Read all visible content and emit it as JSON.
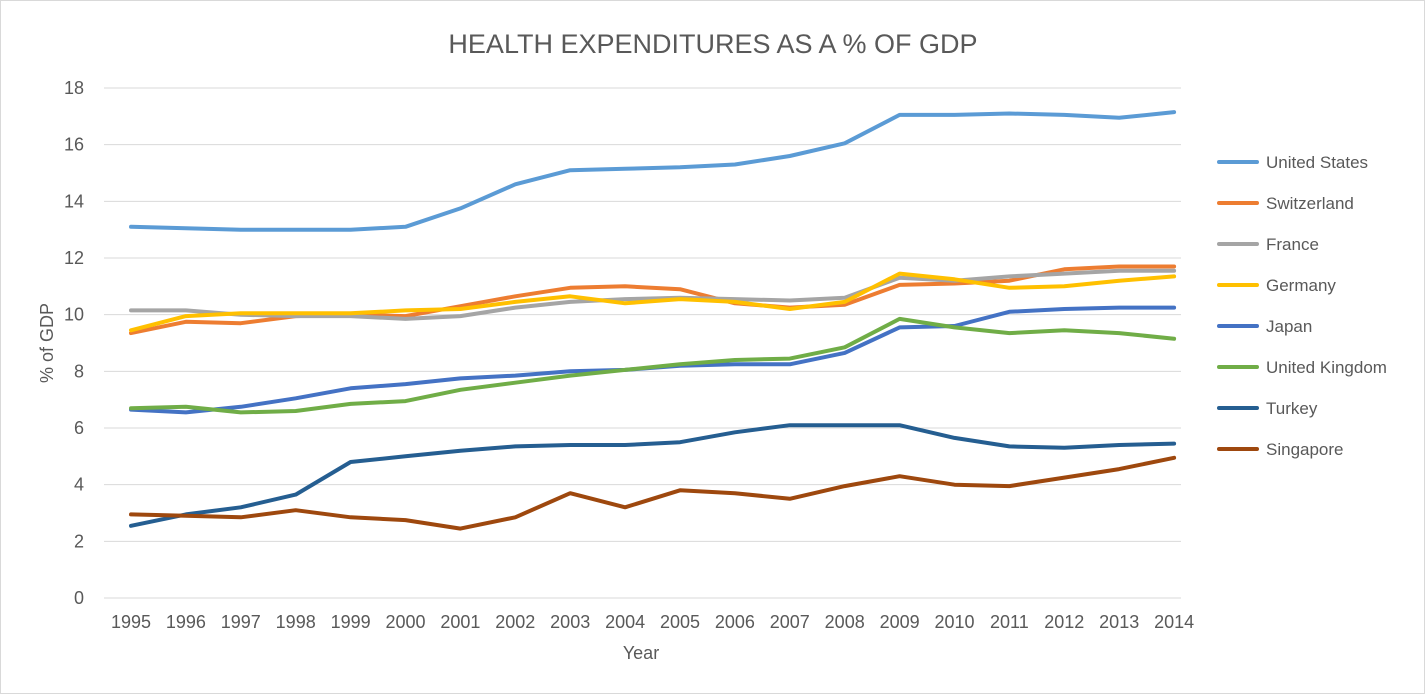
{
  "chart_data": {
    "type": "line",
    "title": "HEALTH EXPENDITURES AS A % OF GDP",
    "xlabel": "Year",
    "ylabel": "% of GDP",
    "ylim": [
      0,
      18
    ],
    "yticks": [
      "0",
      "2",
      "4",
      "6",
      "8",
      "10",
      "12",
      "14",
      "16",
      "18"
    ],
    "grid": "horizontal",
    "legend_position": "right",
    "x": [
      "1995",
      "1996",
      "1997",
      "1998",
      "1999",
      "2000",
      "2001",
      "2002",
      "2003",
      "2004",
      "2005",
      "2006",
      "2007",
      "2008",
      "2009",
      "2010",
      "2011",
      "2012",
      "2013",
      "2014"
    ],
    "series": [
      {
        "name": "United States",
        "color": "#5b9bd5",
        "values": [
          13.1,
          13.05,
          13.0,
          13.0,
          13.0,
          13.1,
          13.75,
          14.6,
          15.1,
          15.15,
          15.2,
          15.3,
          15.6,
          16.05,
          17.05,
          17.05,
          17.1,
          17.05,
          16.95,
          17.15
        ]
      },
      {
        "name": "Switzerland",
        "color": "#ed7d31",
        "values": [
          9.35,
          9.75,
          9.7,
          9.95,
          10.0,
          9.95,
          10.3,
          10.65,
          10.95,
          11.0,
          10.9,
          10.4,
          10.25,
          10.35,
          11.05,
          11.1,
          11.2,
          11.6,
          11.7,
          11.7
        ]
      },
      {
        "name": "France",
        "color": "#a5a5a5",
        "values": [
          10.15,
          10.15,
          10.0,
          9.95,
          9.95,
          9.85,
          9.95,
          10.25,
          10.45,
          10.55,
          10.6,
          10.55,
          10.5,
          10.6,
          11.3,
          11.2,
          11.35,
          11.45,
          11.55,
          11.55
        ]
      },
      {
        "name": "Germany",
        "color": "#ffc000",
        "values": [
          9.45,
          9.95,
          10.05,
          10.05,
          10.05,
          10.15,
          10.2,
          10.45,
          10.65,
          10.4,
          10.55,
          10.45,
          10.2,
          10.45,
          11.45,
          11.25,
          10.95,
          11.0,
          11.2,
          11.35
        ]
      },
      {
        "name": "Japan",
        "color": "#4472c4",
        "values": [
          6.65,
          6.55,
          6.75,
          7.05,
          7.4,
          7.55,
          7.75,
          7.85,
          8.0,
          8.05,
          8.2,
          8.25,
          8.25,
          8.65,
          9.55,
          9.6,
          10.1,
          10.2,
          10.25,
          10.25
        ]
      },
      {
        "name": "United Kingdom",
        "color": "#70ad47",
        "values": [
          6.7,
          6.75,
          6.55,
          6.6,
          6.85,
          6.95,
          7.35,
          7.6,
          7.85,
          8.05,
          8.25,
          8.4,
          8.45,
          8.85,
          9.85,
          9.55,
          9.35,
          9.45,
          9.35,
          9.15
        ]
      },
      {
        "name": "Turkey",
        "color": "#255e91",
        "values": [
          2.55,
          2.95,
          3.2,
          3.65,
          4.8,
          5.0,
          5.2,
          5.35,
          5.4,
          5.4,
          5.5,
          5.85,
          6.1,
          6.1,
          6.1,
          5.65,
          5.35,
          5.3,
          5.4,
          5.45
        ]
      },
      {
        "name": "Singapore",
        "color": "#9e480e",
        "values": [
          2.95,
          2.9,
          2.85,
          3.1,
          2.85,
          2.75,
          2.45,
          2.85,
          3.7,
          3.2,
          3.8,
          3.7,
          3.5,
          3.95,
          4.3,
          4.0,
          3.95,
          4.25,
          4.55,
          4.95
        ]
      }
    ]
  }
}
